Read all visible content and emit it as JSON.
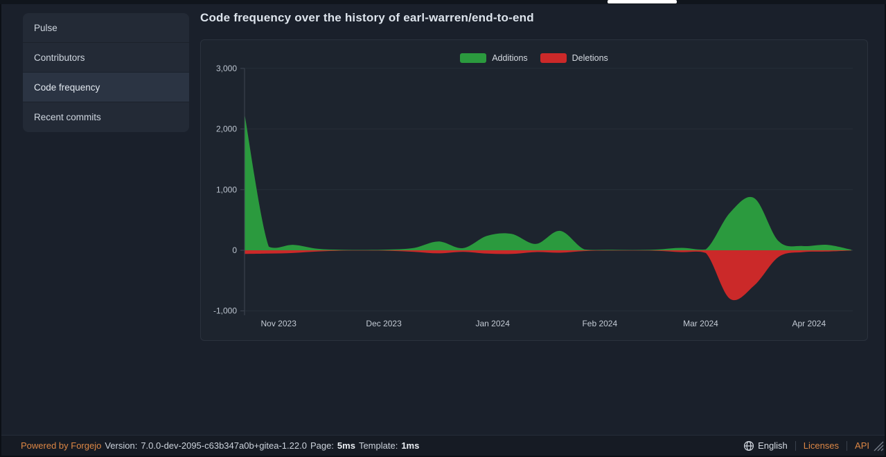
{
  "theme": {
    "accent_orange": "#dd8745",
    "additions_green": "#2b9a3e",
    "deletions_red": "#cb2929",
    "tab_indicator": "#ffffff"
  },
  "sidebar": {
    "items": [
      {
        "label": "Pulse",
        "active": false
      },
      {
        "label": "Contributors",
        "active": false
      },
      {
        "label": "Code frequency",
        "active": true
      },
      {
        "label": "Recent commits",
        "active": false
      }
    ]
  },
  "main": {
    "title": "Code frequency over the history of earl-warren/end-to-end"
  },
  "chart_data": {
    "type": "area",
    "title": "Code frequency over the history of earl-warren/end-to-end",
    "grid": true,
    "legend_position": "top-center",
    "legend": [
      {
        "name": "Additions",
        "color": "#2b9a3e"
      },
      {
        "name": "Deletions",
        "color": "#cb2929"
      }
    ],
    "x_unit": "week",
    "x_ticks": [
      {
        "label": "Nov 2023",
        "pos": 0.056
      },
      {
        "label": "Dec 2023",
        "pos": 0.229
      },
      {
        "label": "Jan 2024",
        "pos": 0.408
      },
      {
        "label": "Feb 2024",
        "pos": 0.584
      },
      {
        "label": "Mar 2024",
        "pos": 0.75
      },
      {
        "label": "Apr 2024",
        "pos": 0.928
      }
    ],
    "y_ticks": [
      {
        "label": "3,000",
        "value": 3000
      },
      {
        "label": "2,000",
        "value": 2000
      },
      {
        "label": "1,000",
        "value": 1000
      },
      {
        "label": "0",
        "value": 0
      },
      {
        "label": "-1,000",
        "value": -1000
      }
    ],
    "ylim": [
      -1000,
      3000
    ],
    "series": [
      {
        "name": "Additions",
        "color": "#2b9a3e",
        "values": [
          2250,
          60,
          90,
          25,
          8,
          6,
          12,
          40,
          145,
          35,
          240,
          270,
          105,
          320,
          15,
          8,
          5,
          12,
          40,
          15,
          620,
          860,
          150,
          70,
          90,
          10
        ]
      },
      {
        "name": "Deletions",
        "color": "#cb2929",
        "values": [
          -60,
          -55,
          -45,
          -20,
          -6,
          -5,
          -8,
          -25,
          -50,
          -25,
          -55,
          -60,
          -30,
          -40,
          -12,
          -5,
          -5,
          -8,
          -30,
          -45,
          -800,
          -580,
          -110,
          -30,
          -20,
          -5
        ]
      }
    ]
  },
  "footer": {
    "powered_by": "Powered by Forgejo",
    "version_label": "Version:",
    "version": "7.0.0-dev-2095-c63b347a0b+gitea-1.22.0",
    "page_label": "Page:",
    "page_time": "5ms",
    "template_label": "Template:",
    "template_time": "1ms",
    "language": "English",
    "licenses": "Licenses",
    "api": "API"
  }
}
